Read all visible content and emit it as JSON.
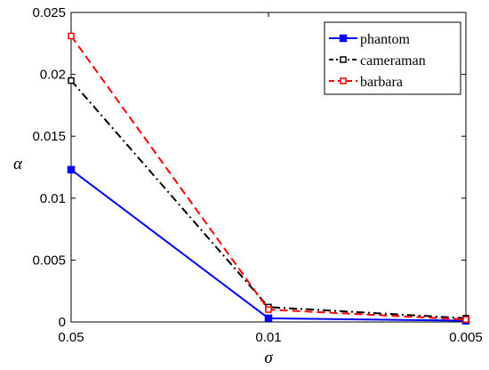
{
  "chart_data": {
    "type": "line",
    "title": "",
    "xlabel": "σ",
    "ylabel": "α",
    "categories": [
      "0.05",
      "0.01",
      "0.005"
    ],
    "ylim": [
      0,
      0.025
    ],
    "yticks": [
      "0",
      "0.005",
      "0.01",
      "0.015",
      "0.02",
      "0.025"
    ],
    "grid": false,
    "legend_position": "top-right",
    "series": [
      {
        "name": "phantom",
        "values": [
          0.0123,
          0.0003,
          0.0001
        ],
        "color": "#0000ff",
        "style": "solid",
        "marker": "square-filled"
      },
      {
        "name": "cameraman",
        "values": [
          0.0195,
          0.0012,
          0.0003
        ],
        "color": "#000000",
        "style": "dashdot",
        "marker": "square-open"
      },
      {
        "name": "barbara",
        "values": [
          0.0231,
          0.001,
          0.0002
        ],
        "color": "#ff0000",
        "style": "dashed",
        "marker": "square-open"
      }
    ]
  }
}
